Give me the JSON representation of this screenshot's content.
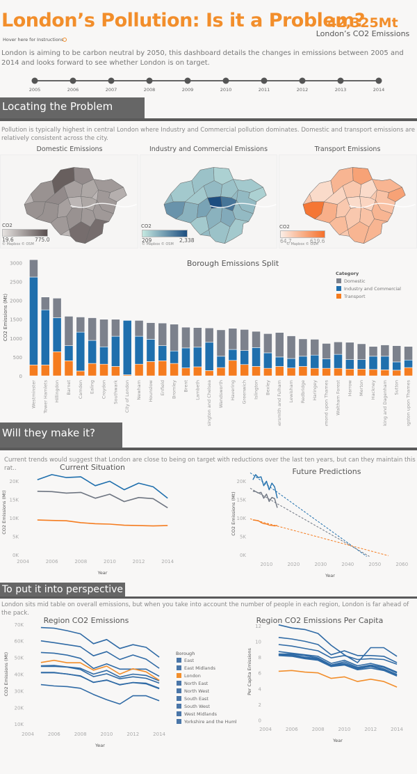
{
  "header": {
    "title": "London’s Pollution: Is it a Problem?",
    "kpi_value": "42,325Mt",
    "kpi_label": "London’s CO2 Emissions",
    "hover_text": "Hover here for Instructions",
    "intro": "London is aiming to be carbon neutral by 2050, this dashboard details the changes in emissions between 2005 and 2014 and looks forward to see whether London is on target."
  },
  "timeline": {
    "years": [
      "2005",
      "2006",
      "2007",
      "2008",
      "2009",
      "2010",
      "2011",
      "2012",
      "2013",
      "2014"
    ]
  },
  "sections": {
    "locating": {
      "title": "Locating the Problem",
      "desc": "Pollution is typically highest in central London where Industry and Commercial pollution dominates. Domestic and transport emissions are relatively consistent across the city."
    },
    "make_it": {
      "title": "Will they make it?",
      "desc": "Current trends would suggest that London are close to being on target with reductions over the last ten years, but can they maintain this rat.."
    },
    "perspective": {
      "title": "To put it into perspective",
      "desc": "London sits mid table on overall emissions, but when you take into account the number of people in each region, London is far ahead of the pack."
    }
  },
  "maps": [
    {
      "title": "Domestic Emissions",
      "legend_title": "CO2",
      "min": "19.6",
      "max": "775.0",
      "attribution": "© Mapbox © OSM",
      "color_low": "#e6e2e0",
      "color_high": "#5a5050"
    },
    {
      "title": "Industry and Commercial Emissions",
      "legend_title": "CO2",
      "min": "209",
      "max": "2,338",
      "attribution": "© Mapbox © OSM",
      "color_low": "#c5e8e0",
      "color_high": "#1d4e80"
    },
    {
      "title": "Transport Emissions",
      "legend_title": "CO2",
      "min": "64.7",
      "max": "619.6",
      "attribution": "© Mapbox © OSM",
      "color_low": "#fbeee6",
      "color_high": "#f5702b"
    }
  ],
  "chart_data": [
    {
      "id": "borough_split",
      "type": "bar",
      "stacked": true,
      "title": "Borough Emissions Split",
      "xlabel": "",
      "ylabel": "CO2 Emissions (Mt)",
      "ylim": [
        0,
        3100
      ],
      "yticks": [
        0,
        500,
        1000,
        1500,
        2000,
        2500,
        3000
      ],
      "legend_title": "Category",
      "legend_position": "top-right",
      "categories": [
        "Westminster",
        "Tower Hamlets",
        "Hillingdon",
        "Barnet",
        "Camden",
        "Ealing",
        "Croydon",
        "Southwark",
        "City of London",
        "Newham",
        "Hounslow",
        "Enfield",
        "Bromley",
        "Brent",
        "Lambeth",
        "Kensington and Chelsea",
        "Wandsworth",
        "Havering",
        "Greenwich",
        "Islington",
        "Bexley",
        "Hammersmith and Fulham",
        "Lewisham",
        "Redbridge",
        "Haringey",
        "Richmond upon Thames",
        "Waltham Forest",
        "Harrow",
        "Merton",
        "Hackney",
        "Barking and Dagenham",
        "Sutton",
        "Kingston upon Thames"
      ],
      "series": [
        {
          "name": "Transport",
          "color": "#f57c1f",
          "values": [
            290,
            290,
            640,
            400,
            130,
            330,
            310,
            250,
            30,
            310,
            380,
            400,
            330,
            210,
            240,
            140,
            220,
            410,
            300,
            250,
            200,
            250,
            210,
            250,
            200,
            200,
            200,
            180,
            180,
            170,
            160,
            150,
            220
          ]
        },
        {
          "name": "Industry and Commercial",
          "color": "#1f6fad",
          "values": [
            2330,
            1460,
            900,
            400,
            1030,
            610,
            460,
            800,
            1440,
            740,
            590,
            400,
            330,
            530,
            520,
            750,
            300,
            290,
            370,
            500,
            410,
            250,
            250,
            270,
            350,
            250,
            370,
            250,
            250,
            350,
            360,
            220,
            200
          ]
        },
        {
          "name": "Domestic",
          "color": "#7c818c",
          "values": [
            460,
            340,
            520,
            780,
            400,
            600,
            730,
            450,
            0,
            420,
            440,
            600,
            710,
            550,
            520,
            380,
            700,
            560,
            560,
            430,
            510,
            650,
            600,
            460,
            420,
            410,
            330,
            460,
            420,
            260,
            300,
            430,
            360
          ]
        }
      ]
    },
    {
      "id": "current_situation",
      "type": "line",
      "title": "Current Situation",
      "xlabel": "Year",
      "ylabel": "CO2 Emissions (Mt)",
      "xlim": [
        2004,
        2015
      ],
      "ylim": [
        0,
        23000
      ],
      "xticks": [
        2004,
        2006,
        2008,
        2010,
        2012,
        2014
      ],
      "yticks": [
        0,
        5000,
        10000,
        15000,
        20000
      ],
      "ytick_labels": [
        "0K",
        "5K",
        "10K",
        "15K",
        "20K"
      ],
      "x": [
        2005,
        2006,
        2007,
        2008,
        2009,
        2010,
        2011,
        2012,
        2013,
        2014
      ],
      "series": [
        {
          "name": "Industry and Commercial",
          "color": "#1f6fad",
          "values": [
            20300,
            21700,
            20900,
            21100,
            18700,
            19900,
            17600,
            19400,
            18400,
            15300
          ]
        },
        {
          "name": "Domestic",
          "color": "#6e7581",
          "values": [
            17200,
            17100,
            16700,
            16900,
            15300,
            16400,
            14400,
            15500,
            15200,
            12700
          ]
        },
        {
          "name": "Transport",
          "color": "#f57c1f",
          "values": [
            9400,
            9300,
            9200,
            8700,
            8400,
            8300,
            8000,
            7900,
            7800,
            7900
          ]
        }
      ]
    },
    {
      "id": "future_predictions",
      "type": "line",
      "title": "Future Predictions",
      "xlabel": "Year",
      "ylabel": "CO2 Emissions (Mt)",
      "xlim": [
        2004,
        2063
      ],
      "ylim": [
        -800,
        23000
      ],
      "xticks": [
        2010,
        2020,
        2030,
        2040,
        2050,
        2060
      ],
      "yticks": [
        0,
        5000,
        10000,
        15000,
        20000
      ],
      "ytick_labels": [
        "0K",
        "5K",
        "10K",
        "15K",
        "20K"
      ],
      "x": [
        2005,
        2006,
        2007,
        2008,
        2009,
        2010,
        2011,
        2012,
        2013,
        2014
      ],
      "series": [
        {
          "name": "Industry and Commercial",
          "color": "#1f6fad",
          "values": [
            20300,
            21700,
            20900,
            21100,
            18700,
            19900,
            17600,
            19400,
            18400,
            15300
          ],
          "trend": [
            [
              2004,
              22200
            ],
            [
              2047,
              -500
            ]
          ]
        },
        {
          "name": "Domestic",
          "color": "#6e7581",
          "values": [
            17200,
            17100,
            16700,
            16900,
            15300,
            16400,
            14400,
            15500,
            15200,
            12700
          ],
          "trend": [
            [
              2004,
              18000
            ],
            [
              2048,
              -500
            ]
          ]
        },
        {
          "name": "Transport",
          "color": "#f57c1f",
          "values": [
            9400,
            9300,
            9200,
            8700,
            8400,
            8300,
            8000,
            7900,
            7800,
            7900
          ],
          "trend": [
            [
              2004,
              9700
            ],
            [
              2055,
              -300
            ]
          ]
        }
      ]
    },
    {
      "id": "region_emissions",
      "type": "line",
      "title": "Region CO2 Emissions",
      "xlabel": "Year",
      "ylabel": "CO2 Emissions (Mt)",
      "xlim": [
        2004,
        2015
      ],
      "ylim": [
        8000,
        72000
      ],
      "xticks": [
        2004,
        2006,
        2008,
        2010,
        2012,
        2014
      ],
      "yticks": [
        10000,
        20000,
        30000,
        40000,
        50000,
        60000,
        70000
      ],
      "ytick_labels": [
        "10K",
        "20K",
        "30K",
        "40K",
        "50K",
        "60K",
        "70K"
      ],
      "legend_title": "Borough",
      "legend_position": "right",
      "x": [
        2005,
        2006,
        2007,
        2008,
        2009,
        2010,
        2011,
        2012,
        2013,
        2014
      ],
      "series": [
        {
          "name": "East",
          "color": "#2f6aa5",
          "values": [
            45000,
            45200,
            44300,
            43500,
            40000,
            42200,
            38200,
            40000,
            39200,
            36000
          ]
        },
        {
          "name": "East Midlands",
          "color": "#2f6aa5",
          "values": [
            41000,
            41000,
            40000,
            39000,
            35000,
            36500,
            33500,
            35000,
            34500,
            31500
          ]
        },
        {
          "name": "London",
          "color": "#f28e2b",
          "values": [
            47000,
            48300,
            46800,
            46800,
            42400,
            44800,
            40000,
            43200,
            41400,
            36300
          ]
        },
        {
          "name": "North East",
          "color": "#2f6aa5",
          "values": [
            33700,
            32900,
            32500,
            31500,
            27800,
            24600,
            22000,
            27000,
            27000,
            24000
          ]
        },
        {
          "name": "North West",
          "color": "#2f6aa5",
          "values": [
            60000,
            58900,
            57700,
            56500,
            51000,
            53500,
            48800,
            51500,
            49000,
            43500
          ]
        },
        {
          "name": "South East",
          "color": "#2f6aa5",
          "values": [
            68000,
            67600,
            66100,
            64200,
            58300,
            60800,
            55400,
            57700,
            56100,
            50200
          ]
        },
        {
          "name": "South West",
          "color": "#2f6aa5",
          "values": [
            40800,
            40800,
            40100,
            38800,
            35100,
            36300,
            33700,
            34900,
            34200,
            31200
          ]
        },
        {
          "name": "West Midlands",
          "color": "#2f6aa5",
          "values": [
            44600,
            44700,
            44200,
            42800,
            38500,
            40200,
            37200,
            38400,
            37500,
            34600
          ]
        },
        {
          "name": "Yorkshire and the Humber",
          "color": "#2f6aa5",
          "values": [
            53000,
            52600,
            51400,
            49500,
            43400,
            46200,
            43000,
            43000,
            43000,
            38700
          ]
        }
      ]
    },
    {
      "id": "region_per_capita",
      "type": "line",
      "title": "Region CO2 Emissions Per Capita",
      "xlabel": "Year",
      "ylabel": "Per Capita Emissions",
      "xlim": [
        2004,
        2015
      ],
      "ylim": [
        -0.3,
        12.6
      ],
      "xticks": [
        2004,
        2006,
        2008,
        2010,
        2012,
        2014
      ],
      "yticks": [
        0,
        2,
        4,
        6,
        8,
        10,
        12
      ],
      "ytick_labels": [
        "0",
        "2",
        "4",
        "6",
        "8",
        "10",
        "12"
      ],
      "x": [
        2005,
        2006,
        2007,
        2008,
        2009,
        2010,
        2011,
        2012,
        2013,
        2014
      ],
      "series": [
        {
          "name": "North East",
          "color": "#2f6aa5",
          "values": [
            12.1,
            11.7,
            11.5,
            11.0,
            9.5,
            8.3,
            7.3,
            9.2,
            9.2,
            8.1
          ]
        },
        {
          "name": "Yorkshire and the Humber",
          "color": "#2f6aa5",
          "values": [
            10.5,
            10.3,
            10.0,
            9.6,
            8.3,
            8.8,
            8.2,
            8.2,
            8.1,
            7.3
          ]
        },
        {
          "name": "East Midlands",
          "color": "#2f6aa5",
          "values": [
            9.6,
            9.4,
            9.1,
            8.8,
            7.9,
            8.2,
            7.7,
            7.8,
            7.7,
            7.1
          ]
        },
        {
          "name": "North West",
          "color": "#2f6aa5",
          "values": [
            8.7,
            8.5,
            8.3,
            8.1,
            7.2,
            7.6,
            6.9,
            7.2,
            6.8,
            6.1
          ]
        },
        {
          "name": "West Midlands",
          "color": "#2f6aa5",
          "values": [
            8.4,
            8.4,
            8.2,
            7.9,
            7.0,
            7.4,
            6.7,
            7.0,
            6.7,
            6.0
          ]
        },
        {
          "name": "East",
          "color": "#2f6aa5",
          "values": [
            8.3,
            8.3,
            8.0,
            7.8,
            7.0,
            7.2,
            6.6,
            6.9,
            6.5,
            5.8
          ]
        },
        {
          "name": "South West",
          "color": "#2f6aa5",
          "values": [
            8.3,
            8.2,
            7.9,
            7.7,
            6.9,
            7.1,
            6.5,
            6.8,
            6.4,
            5.7
          ]
        },
        {
          "name": "South East",
          "color": "#2f6aa5",
          "values": [
            8.2,
            8.1,
            7.8,
            7.6,
            6.8,
            7.0,
            6.4,
            6.6,
            6.3,
            5.6
          ]
        },
        {
          "name": "London",
          "color": "#f28e2b",
          "values": [
            6.2,
            6.3,
            6.1,
            6.0,
            5.3,
            5.5,
            4.9,
            5.2,
            4.9,
            4.2
          ]
        }
      ]
    }
  ]
}
